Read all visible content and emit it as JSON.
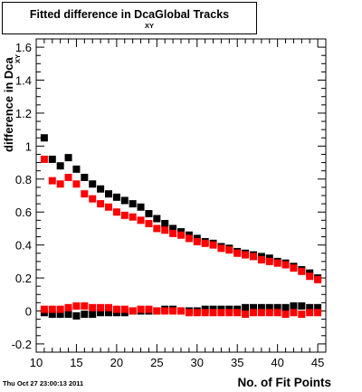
{
  "title": {
    "main": "Fitted difference in Dca",
    "subscript": "XY",
    "suffix": "Global Tracks"
  },
  "footer_text": "Thu Oct 27 23:00:13 2011",
  "colors": {
    "black_series": "#000000",
    "red_series": "#ff0000"
  },
  "chart_data": {
    "type": "scatter",
    "xlabel": "No. of Fit Points",
    "ylabel": "difference in Dca",
    "ylabel_sub": "XY",
    "xlim": [
      10,
      46
    ],
    "ylim": [
      -0.25,
      1.65
    ],
    "xticks": [
      10,
      15,
      20,
      25,
      30,
      35,
      40,
      45
    ],
    "yticks": [
      -0.2,
      0,
      0.2,
      0.4,
      0.6,
      0.8,
      1,
      1.2,
      1.4,
      1.6
    ],
    "marker": "square",
    "series": [
      {
        "color": "#000000",
        "x": [
          11,
          12,
          13,
          14,
          15,
          16,
          17,
          18,
          19,
          20,
          21,
          22,
          23,
          24,
          25,
          26,
          27,
          28,
          29,
          30,
          31,
          32,
          33,
          34,
          35,
          36,
          37,
          38,
          39,
          40,
          41,
          42,
          43,
          44,
          45
        ],
        "values": [
          1.05,
          0.92,
          0.88,
          0.93,
          0.86,
          0.81,
          0.77,
          0.74,
          0.71,
          0.69,
          0.67,
          0.65,
          0.63,
          0.59,
          0.56,
          0.53,
          0.5,
          0.48,
          0.46,
          0.44,
          0.42,
          0.41,
          0.39,
          0.38,
          0.36,
          0.35,
          0.34,
          0.33,
          0.32,
          0.3,
          0.29,
          0.27,
          0.25,
          0.23,
          0.2
        ]
      },
      {
        "color": "#ff0000",
        "x": [
          11,
          12,
          13,
          14,
          15,
          16,
          17,
          18,
          19,
          20,
          21,
          22,
          23,
          24,
          25,
          26,
          27,
          28,
          29,
          30,
          31,
          32,
          33,
          34,
          35,
          36,
          37,
          38,
          39,
          40,
          41,
          42,
          43,
          44,
          45
        ],
        "values": [
          0.92,
          0.79,
          0.77,
          0.81,
          0.77,
          0.71,
          0.68,
          0.65,
          0.63,
          0.6,
          0.58,
          0.57,
          0.55,
          0.53,
          0.5,
          0.49,
          0.47,
          0.46,
          0.44,
          0.42,
          0.41,
          0.4,
          0.38,
          0.37,
          0.35,
          0.34,
          0.33,
          0.31,
          0.3,
          0.29,
          0.28,
          0.26,
          0.24,
          0.21,
          0.19
        ]
      },
      {
        "color": "#000000",
        "x": [
          11,
          12,
          13,
          14,
          15,
          16,
          17,
          18,
          19,
          20,
          21,
          22,
          23,
          24,
          25,
          26,
          27,
          28,
          29,
          30,
          31,
          32,
          33,
          34,
          35,
          36,
          37,
          38,
          39,
          40,
          41,
          42,
          43,
          44,
          45
        ],
        "values": [
          -0.01,
          -0.02,
          -0.02,
          -0.02,
          -0.03,
          -0.02,
          -0.02,
          -0.01,
          -0.01,
          -0.01,
          -0.01,
          0.0,
          0.0,
          0.0,
          0.0,
          0.01,
          0.01,
          0.0,
          0.0,
          0.0,
          0.01,
          0.01,
          0.01,
          0.01,
          0.01,
          0.02,
          0.02,
          0.02,
          0.02,
          0.02,
          0.02,
          0.03,
          0.03,
          0.02,
          0.02
        ]
      },
      {
        "color": "#ff0000",
        "x": [
          11,
          12,
          13,
          14,
          15,
          16,
          17,
          18,
          19,
          20,
          21,
          22,
          23,
          24,
          25,
          26,
          27,
          28,
          29,
          30,
          31,
          32,
          33,
          34,
          35,
          36,
          37,
          38,
          39,
          40,
          41,
          42,
          43,
          44,
          45
        ],
        "values": [
          0.01,
          0.01,
          0.01,
          0.02,
          0.03,
          0.03,
          0.02,
          0.02,
          0.02,
          0.01,
          0.01,
          0.0,
          0.01,
          0.01,
          0.0,
          0.0,
          0.0,
          0.0,
          -0.01,
          -0.01,
          -0.01,
          -0.01,
          -0.01,
          -0.01,
          -0.01,
          -0.02,
          -0.01,
          -0.01,
          -0.01,
          -0.01,
          -0.02,
          -0.01,
          -0.02,
          -0.01,
          -0.01
        ]
      }
    ]
  }
}
